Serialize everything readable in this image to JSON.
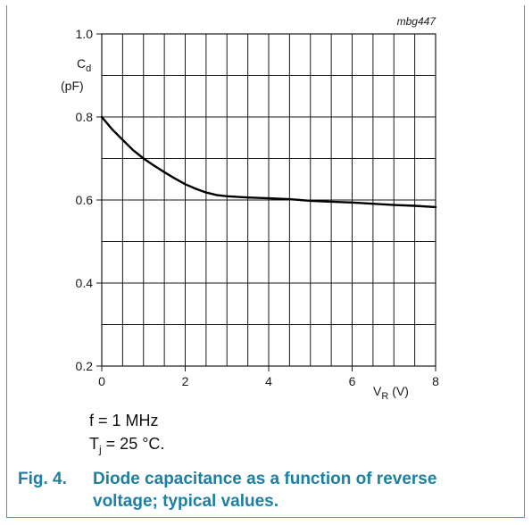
{
  "chart_data": {
    "type": "line",
    "reference": "mbg447",
    "ylabel_symbol": "C",
    "ylabel_subscript": "d",
    "ylabel_unit": "(pF)",
    "xlabel_symbol": "V",
    "xlabel_subscript": "R",
    "xlabel_unit": "(V)",
    "xlim": [
      0,
      8
    ],
    "ylim": [
      0.2,
      1.0
    ],
    "grid": true,
    "x_ticks": [
      0,
      2,
      4,
      6,
      8
    ],
    "x_tick_labels": [
      "0",
      "2",
      "4",
      "6",
      "8"
    ],
    "y_ticks": [
      0.2,
      0.4,
      0.6,
      0.8,
      1.0
    ],
    "y_tick_labels": [
      "0.2",
      "0.4",
      "0.6",
      "0.8",
      "1.0"
    ],
    "series": [
      {
        "x": [
          0,
          0.25,
          0.5,
          0.75,
          1.0,
          1.25,
          1.5,
          1.75,
          2.0,
          2.25,
          2.5,
          2.75,
          3.0,
          3.5,
          4.0,
          4.5,
          5.0,
          5.5,
          6.0,
          6.5,
          7.0,
          7.5,
          8.0
        ],
        "values": [
          0.8,
          0.77,
          0.745,
          0.72,
          0.7,
          0.683,
          0.667,
          0.652,
          0.638,
          0.627,
          0.618,
          0.612,
          0.609,
          0.606,
          0.604,
          0.602,
          0.598,
          0.596,
          0.594,
          0.591,
          0.588,
          0.586,
          0.583
        ],
        "color": "#000000"
      }
    ]
  },
  "conditions": {
    "frequency": "f = 1 MHz",
    "temp_prefix": "T",
    "temp_subscript": "j",
    "temp_value": " = 25 °C."
  },
  "caption": {
    "number": "Fig. 4.",
    "title": "Diode capacitance as a function of reverse voltage; typical values."
  }
}
